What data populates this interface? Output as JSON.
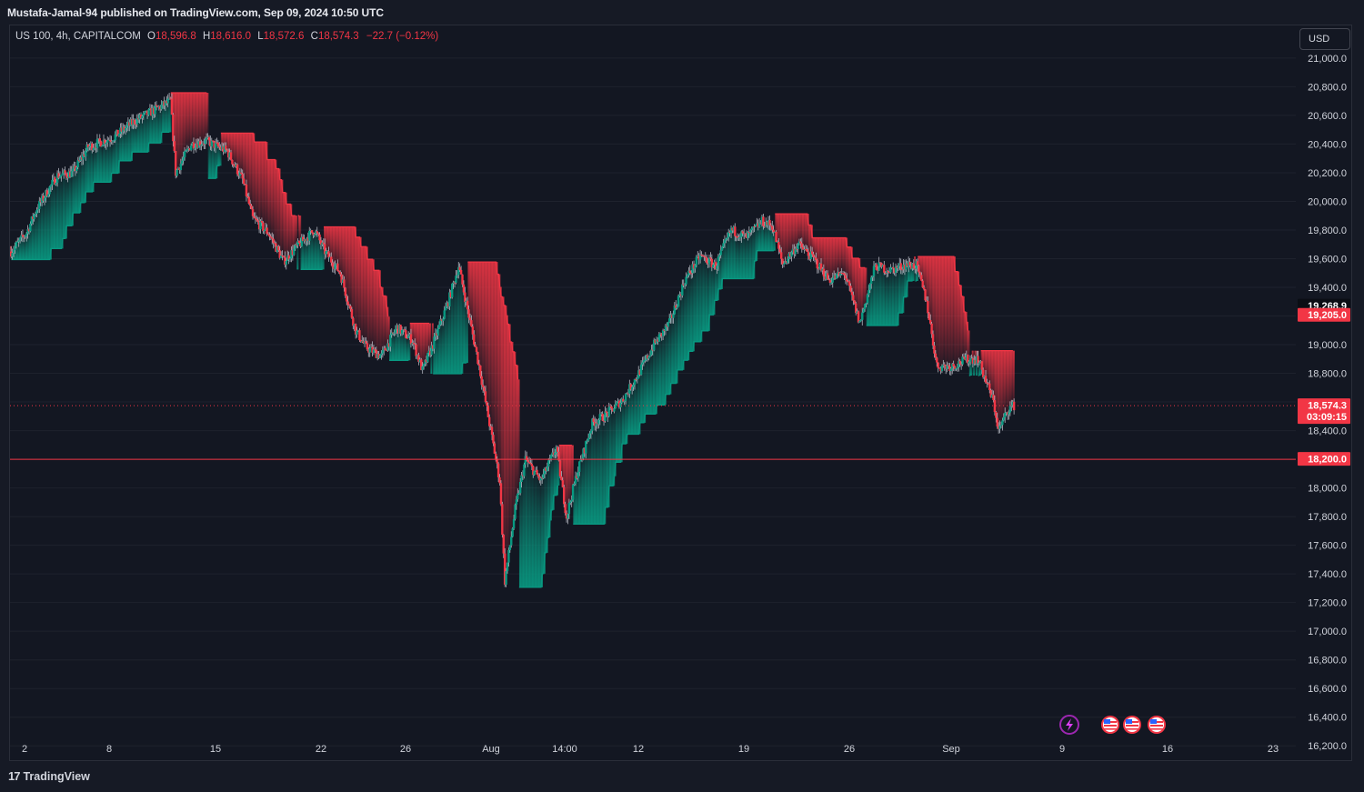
{
  "header": {
    "published_by": "Mustafa-Jamal-94 published on TradingView.com, Sep 09, 2024 10:50 UTC"
  },
  "legend": {
    "symbol": "US 100, 4h, CAPITALCOM",
    "open_label": "O",
    "open": "18,596.8",
    "high_label": "H",
    "high": "18,616.0",
    "low_label": "L",
    "low": "18,572.6",
    "close_label": "C",
    "close": "18,574.3",
    "change": "−22.7 (−0.12%)"
  },
  "toolbar": {
    "currency": "USD"
  },
  "footer": {
    "logo_text": "TradingView",
    "logo_mark": "17"
  },
  "colors": {
    "background": "#131722",
    "bullish": "#089981",
    "bearish": "#f23645",
    "wick": "#b2b5be",
    "grid": "#1e222d"
  },
  "icons": [
    "lightning-icon",
    "us-flag-icon",
    "us-flag-icon",
    "us-flag-icon"
  ],
  "chart_data": {
    "type": "candlestick",
    "timeframe": "4h",
    "x_tick_labels": [
      "2",
      "8",
      "15",
      "22",
      "26",
      "Aug",
      "14:00",
      "12",
      "19",
      "26",
      "Sep",
      "9",
      "16",
      "23"
    ],
    "y_tick_labels": [
      "21,000.0",
      "20,800.0",
      "20,600.0",
      "20,400.0",
      "20,200.0",
      "20,000.0",
      "19,800.0",
      "19,600.0",
      "19,400.0",
      "19,200.0",
      "19,000.0",
      "18,800.0",
      "18,600.0",
      "18,400.0",
      "18,200.0",
      "18,000.0",
      "17,800.0",
      "17,600.0",
      "17,400.0",
      "17,200.0",
      "17,000.0",
      "16,800.0",
      "16,600.0",
      "16,400.0",
      "16,200.0"
    ],
    "ylim": [
      16100,
      21050
    ],
    "price_path": [
      {
        "x": 0,
        "y": 19650
      },
      {
        "x": 3,
        "y": 19780
      },
      {
        "x": 5,
        "y": 19950
      },
      {
        "x": 9,
        "y": 20180
      },
      {
        "x": 12,
        "y": 20200
      },
      {
        "x": 15,
        "y": 20380
      },
      {
        "x": 20,
        "y": 20450
      },
      {
        "x": 24,
        "y": 20560
      },
      {
        "x": 28,
        "y": 20640
      },
      {
        "x": 31,
        "y": 20700
      },
      {
        "x": 32,
        "y": 20200
      },
      {
        "x": 35,
        "y": 20400
      },
      {
        "x": 38,
        "y": 20420
      },
      {
        "x": 42,
        "y": 20350
      },
      {
        "x": 45,
        "y": 20150
      },
      {
        "x": 47,
        "y": 19880
      },
      {
        "x": 50,
        "y": 19780
      },
      {
        "x": 53,
        "y": 19580
      },
      {
        "x": 56,
        "y": 19700
      },
      {
        "x": 59,
        "y": 19800
      },
      {
        "x": 61,
        "y": 19650
      },
      {
        "x": 64,
        "y": 19500
      },
      {
        "x": 67,
        "y": 19100
      },
      {
        "x": 69,
        "y": 18980
      },
      {
        "x": 72,
        "y": 18920
      },
      {
        "x": 75,
        "y": 19120
      },
      {
        "x": 78,
        "y": 19030
      },
      {
        "x": 80,
        "y": 18820
      },
      {
        "x": 82,
        "y": 19000
      },
      {
        "x": 85,
        "y": 19300
      },
      {
        "x": 87,
        "y": 19550
      },
      {
        "x": 89,
        "y": 19200
      },
      {
        "x": 91,
        "y": 18850
      },
      {
        "x": 93,
        "y": 18450
      },
      {
        "x": 95,
        "y": 18050
      },
      {
        "x": 96,
        "y": 17350
      },
      {
        "x": 98,
        "y": 17850
      },
      {
        "x": 100,
        "y": 18200
      },
      {
        "x": 103,
        "y": 18050
      },
      {
        "x": 106,
        "y": 18280
      },
      {
        "x": 108,
        "y": 17800
      },
      {
        "x": 110,
        "y": 18100
      },
      {
        "x": 113,
        "y": 18450
      },
      {
        "x": 116,
        "y": 18520
      },
      {
        "x": 119,
        "y": 18620
      },
      {
        "x": 122,
        "y": 18800
      },
      {
        "x": 125,
        "y": 19000
      },
      {
        "x": 128,
        "y": 19150
      },
      {
        "x": 131,
        "y": 19450
      },
      {
        "x": 134,
        "y": 19620
      },
      {
        "x": 137,
        "y": 19550
      },
      {
        "x": 140,
        "y": 19800
      },
      {
        "x": 143,
        "y": 19750
      },
      {
        "x": 146,
        "y": 19860
      },
      {
        "x": 148,
        "y": 19830
      },
      {
        "x": 150,
        "y": 19560
      },
      {
        "x": 153,
        "y": 19700
      },
      {
        "x": 156,
        "y": 19600
      },
      {
        "x": 159,
        "y": 19450
      },
      {
        "x": 162,
        "y": 19500
      },
      {
        "x": 165,
        "y": 19150
      },
      {
        "x": 168,
        "y": 19550
      },
      {
        "x": 171,
        "y": 19520
      },
      {
        "x": 174,
        "y": 19560
      },
      {
        "x": 176,
        "y": 19550
      },
      {
        "x": 178,
        "y": 19300
      },
      {
        "x": 180,
        "y": 18850
      },
      {
        "x": 183,
        "y": 18850
      },
      {
        "x": 186,
        "y": 18900
      },
      {
        "x": 188,
        "y": 18900
      },
      {
        "x": 191,
        "y": 18600
      },
      {
        "x": 192,
        "y": 18400
      },
      {
        "x": 194,
        "y": 18560
      },
      {
        "x": 195,
        "y": 18574
      }
    ],
    "resistance_level": 18200.0,
    "current_price": 18574.3,
    "countdown": "03:09:15",
    "price_badges": [
      {
        "value": 19268.9,
        "label": "19,268.9",
        "color": "#0b0e14",
        "text_color": "#ffffff"
      },
      {
        "value": 19205.0,
        "label": "19,205.0",
        "color": "#f23645",
        "text_color": "#ffffff"
      },
      {
        "value": 18574.3,
        "label": "18,574.3",
        "color": "#f23645",
        "text_color": "#ffffff"
      },
      {
        "value": 18200.0,
        "label": "18,200.0",
        "color": "#f23645",
        "text_color": "#ffffff"
      }
    ]
  }
}
